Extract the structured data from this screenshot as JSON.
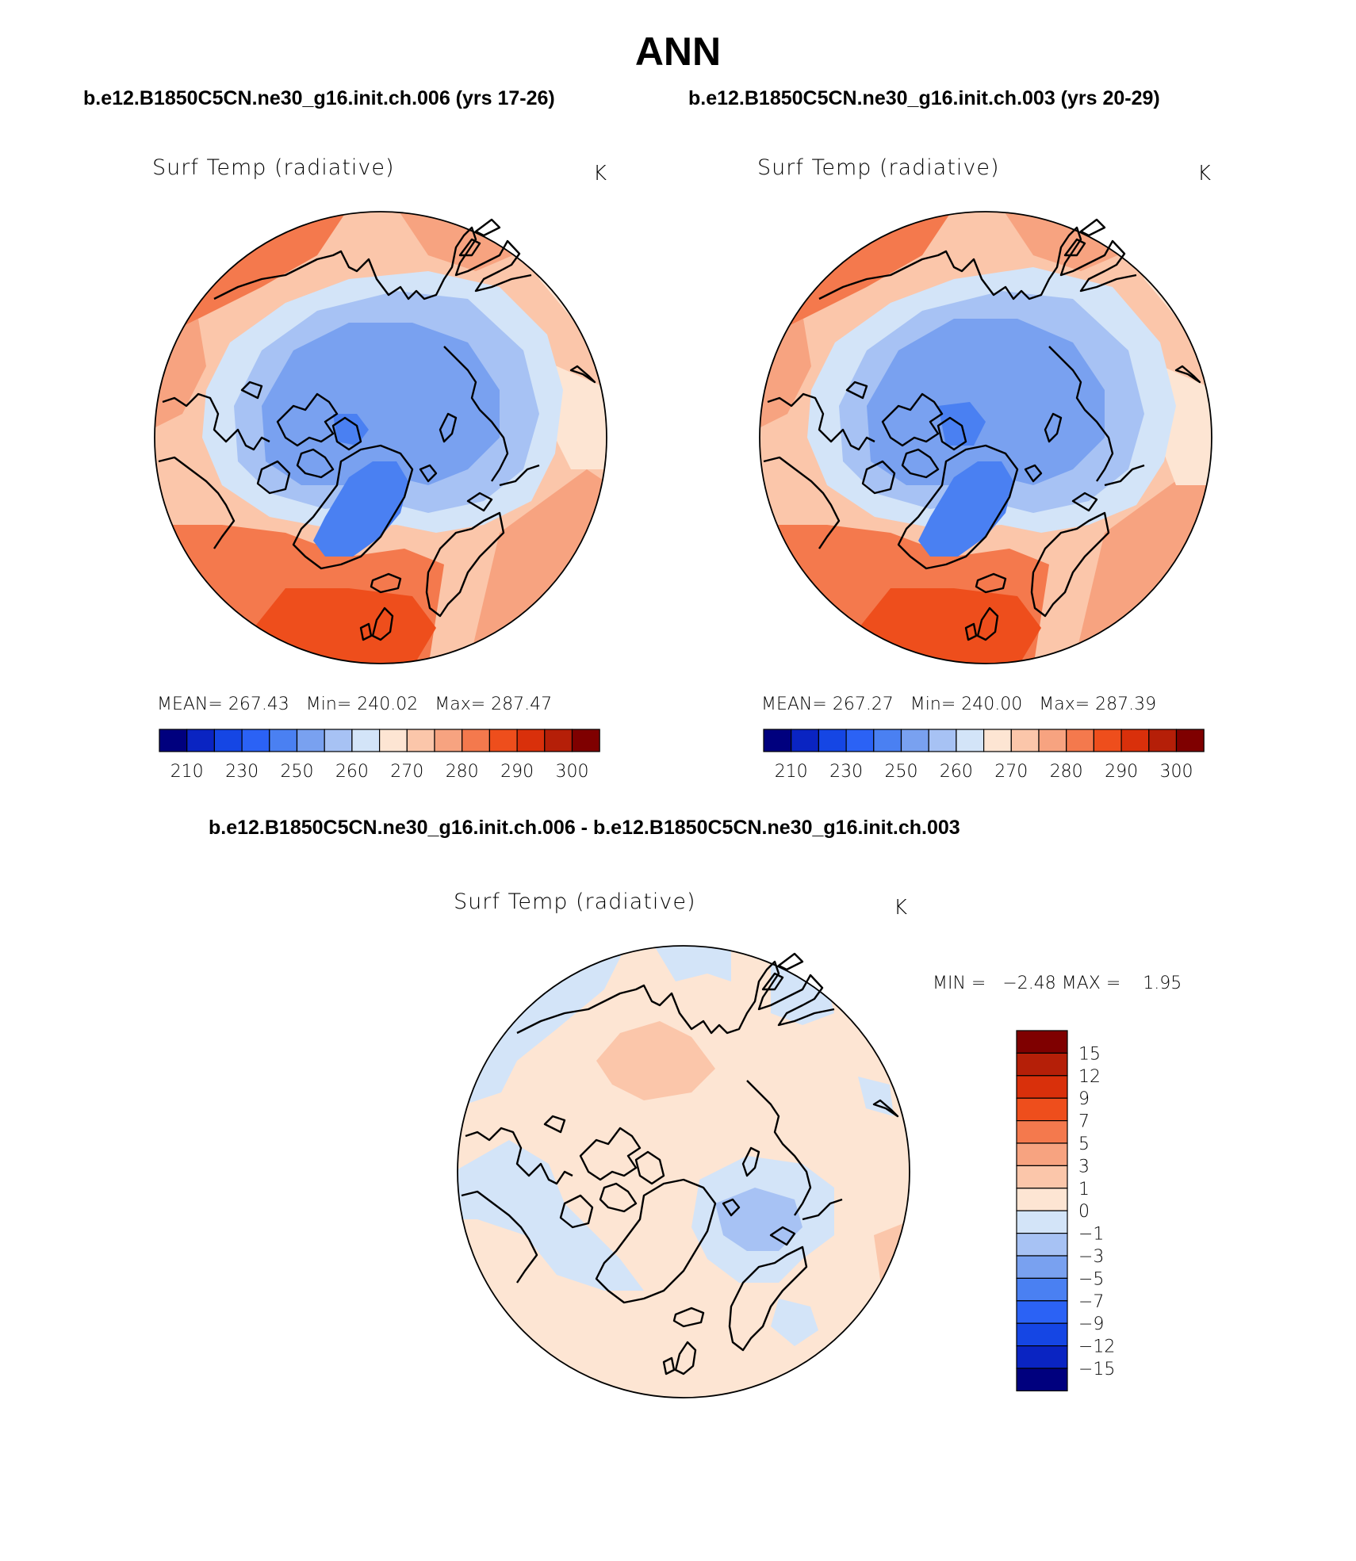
{
  "figure": {
    "title": "ANN",
    "case1_title": "b.e12.B1850C5CN.ne30_g16.init.ch.006 (yrs 17-26)",
    "case2_title": "b.e12.B1850C5CN.ne30_g16.init.ch.003 (yrs 20-29)",
    "diff_title": "b.e12.B1850C5CN.ne30_g16.init.ch.006 - b.e12.B1850C5CN.ne30_g16.init.ch.003"
  },
  "panels": [
    {
      "variable": "Surf Temp (radiative)",
      "units": "K",
      "stats": {
        "mean_label": "MEAN=",
        "mean": "267.43",
        "min_label": "Min=",
        "min": "240.02",
        "max_label": "Max=",
        "max": "287.47"
      }
    },
    {
      "variable": "Surf Temp (radiative)",
      "units": "K",
      "stats": {
        "mean_label": "MEAN=",
        "mean": "267.27",
        "min_label": "Min=",
        "min": "240.00",
        "max_label": "Max=",
        "max": "287.39"
      }
    },
    {
      "variable": "Surf Temp (radiative)",
      "units": "K",
      "stats": {
        "min_label": "MIN =",
        "min": "−2.48",
        "max_label": "MAX =",
        "max": "1.95"
      }
    }
  ],
  "chart_data": [
    {
      "type": "heatmap",
      "name": "case 006 surface temperature (north polar stereographic)",
      "colorbar_orientation": "horizontal",
      "colorbar_colors": [
        "#00007e",
        "#0a24c2",
        "#1546e4",
        "#2b62f5",
        "#4a80f2",
        "#79a1f0",
        "#a7c2f4",
        "#d3e4f8",
        "#fde5d3",
        "#fbc6aa",
        "#f7a380",
        "#f4794d",
        "#ee4e1c",
        "#d9300b",
        "#b51f08",
        "#7f0000"
      ],
      "colorbar_ticks": [
        "210",
        "230",
        "250",
        "260",
        "270",
        "280",
        "290",
        "300"
      ],
      "mean": 267.43,
      "min": 240.02,
      "max": 287.47
    },
    {
      "type": "heatmap",
      "name": "case 003 surface temperature (north polar stereographic)",
      "colorbar_orientation": "horizontal",
      "colorbar_colors": [
        "#00007e",
        "#0a24c2",
        "#1546e4",
        "#2b62f5",
        "#4a80f2",
        "#79a1f0",
        "#a7c2f4",
        "#d3e4f8",
        "#fde5d3",
        "#fbc6aa",
        "#f7a380",
        "#f4794d",
        "#ee4e1c",
        "#d9300b",
        "#b51f08",
        "#7f0000"
      ],
      "colorbar_ticks": [
        "210",
        "230",
        "250",
        "260",
        "270",
        "280",
        "290",
        "300"
      ],
      "mean": 267.27,
      "min": 240.0,
      "max": 287.39
    },
    {
      "type": "heatmap",
      "name": "difference 006 - 003",
      "colorbar_orientation": "vertical",
      "colorbar_colors_top_to_bottom": [
        "#7f0000",
        "#b51f08",
        "#d9300b",
        "#ee4e1c",
        "#f4794d",
        "#f7a380",
        "#fbc6aa",
        "#fde5d3",
        "#d3e4f8",
        "#a7c2f4",
        "#79a1f0",
        "#4a80f2",
        "#2b62f5",
        "#1546e4",
        "#0a24c2",
        "#00007e"
      ],
      "colorbar_ticks_top_to_bottom": [
        "15",
        "12",
        "9",
        "7",
        "5",
        "3",
        "1",
        "0",
        "−1",
        "−3",
        "−5",
        "−7",
        "−9",
        "−12",
        "−15"
      ],
      "min": -2.48,
      "max": 1.95
    }
  ]
}
